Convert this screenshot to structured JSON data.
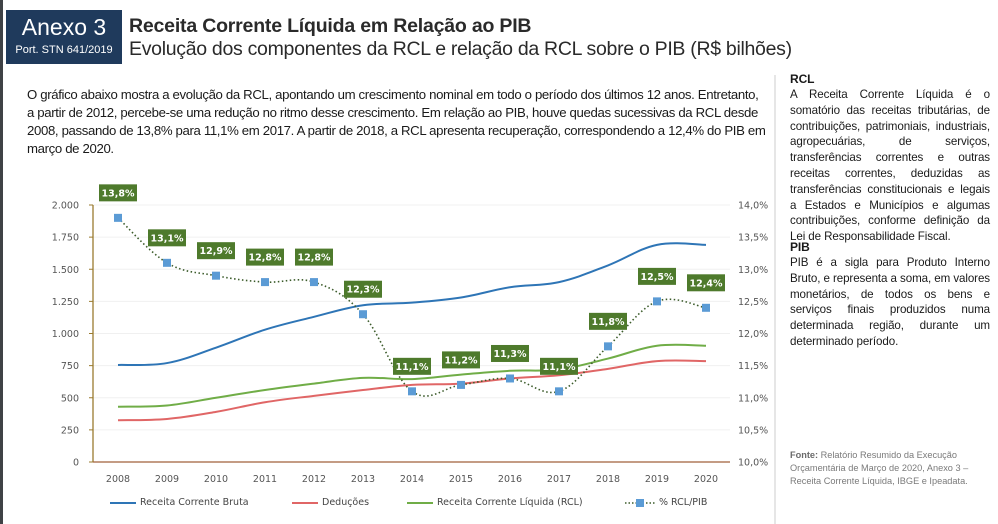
{
  "header": {
    "annex_label": "Anexo 3",
    "annex_sub": "Port. STN 641/2019",
    "title": "Receita Corrente Líquida em Relação ao PIB",
    "subtitle": "Evolução dos componentes da RCL e relação da RCL sobre o PIB (R$ bilhões)"
  },
  "intro_text": "O gráfico abaixo mostra a evolução da RCL, apontando um crescimento nominal em todo o período dos últimos 12 anos. Entretanto, a partir de 2012, percebe-se uma redução no ritmo desse crescimento. Em relação ao PIB, houve quedas sucessivas da RCL desde 2008, passando de 13,8% para 11,1% em 2017. A partir de 2018, a RCL apresenta recuperação, correspondendo a 12,4% do PIB em março de 2020.",
  "sidebar": {
    "sections": [
      {
        "heading": "RCL",
        "text": "A Receita Corrente Líquida é o somatório das receitas tributárias, de contribuições, patrimoniais, industriais, agropecuárias, de serviços, transferências correntes e outras receitas correntes, deduzidas as transferências constitucionais e legais a Estados e Municípios e algumas contribuições, conforme definição da Lei de Responsabilidade Fiscal."
      },
      {
        "heading": "PIB",
        "text": "PIB é a sigla para Produto Interno Bruto, e representa a soma, em valores monetários, de todos os bens e serviços finais produzidos numa determinada região, durante um determinado período."
      }
    ],
    "source_label": "Fonte:",
    "source_text": " Relatório Resumido da Execução Orçamentária de Março de 2020, Anexo 3 – Receita Corrente Líquida, IBGE e Ipeadata."
  },
  "chart_data": {
    "type": "line",
    "title": "Evolução dos componentes da RCL e relação da RCL sobre o PIB (R$ bilhões)",
    "x": [
      "2008",
      "2009",
      "2010",
      "2011",
      "2012",
      "2013",
      "2014",
      "2015",
      "2016",
      "2017",
      "2018",
      "2019",
      "2020"
    ],
    "y_left": {
      "range": [
        0,
        2000
      ],
      "ticks": [
        0,
        250,
        500,
        750,
        1000,
        1250,
        1500,
        1750,
        2000
      ],
      "tick_labels": [
        "0",
        "250",
        "500",
        "750",
        "1.000",
        "1.250",
        "1.500",
        "1.750",
        "2.000"
      ]
    },
    "y_right": {
      "range": [
        10.0,
        14.0
      ],
      "ticks": [
        10.0,
        10.5,
        11.0,
        11.5,
        12.0,
        12.5,
        13.0,
        13.5,
        14.0
      ],
      "tick_labels": [
        "10,0%",
        "10,5%",
        "11,0%",
        "11,5%",
        "12,0%",
        "12,5%",
        "13,0%",
        "13,5%",
        "14,0%"
      ]
    },
    "grid": true,
    "legend_position": "bottom",
    "series": [
      {
        "name": "Receita Corrente Bruta",
        "axis": "left",
        "color": "#2e75b6",
        "style": "solid",
        "values": [
          755,
          770,
          890,
          1030,
          1130,
          1220,
          1240,
          1280,
          1360,
          1400,
          1530,
          1690,
          1690
        ]
      },
      {
        "name": "Deduções",
        "axis": "left",
        "color": "#e06666",
        "style": "solid",
        "values": [
          325,
          335,
          390,
          465,
          515,
          560,
          600,
          610,
          650,
          675,
          725,
          785,
          785
        ]
      },
      {
        "name": "Receita Corrente Líquida (RCL)",
        "axis": "left",
        "color": "#70ad47",
        "style": "solid",
        "values": [
          430,
          440,
          500,
          560,
          610,
          655,
          645,
          680,
          710,
          720,
          805,
          905,
          905
        ]
      },
      {
        "name": "% RCL/PIB",
        "axis": "right",
        "color": "#5b9bd5",
        "line_color": "#3b5b2a",
        "style": "dotted",
        "marker": "square",
        "values": [
          13.8,
          13.1,
          12.9,
          12.8,
          12.8,
          12.3,
          11.1,
          11.2,
          11.3,
          11.1,
          11.8,
          12.5,
          12.4
        ],
        "data_labels": [
          "13,8%",
          "13,1%",
          "12,9%",
          "12,8%",
          "12,8%",
          "12,3%",
          "11,1%",
          "11,2%",
          "11,3%",
          "11,1%",
          "11,8%",
          "12,5%",
          "12,4%"
        ],
        "label_bg": "#4e7a2c"
      }
    ]
  }
}
